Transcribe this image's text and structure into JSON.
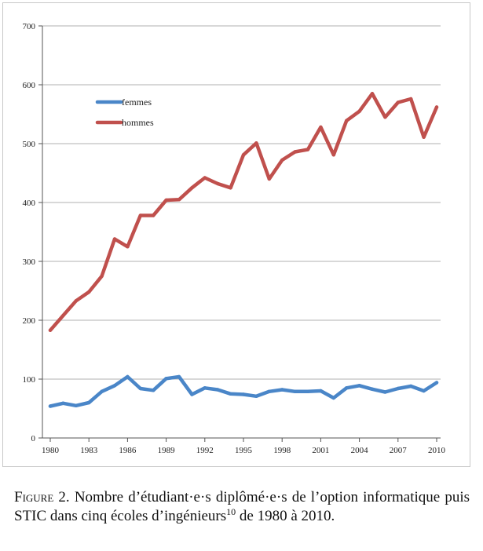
{
  "chart_data": {
    "type": "line",
    "title": "",
    "xlabel": "",
    "ylabel": "",
    "ylim": [
      0,
      700
    ],
    "yticks": [
      "0",
      "100",
      "200",
      "300",
      "400",
      "500",
      "600",
      "700"
    ],
    "xlim": [
      1980,
      2010
    ],
    "xticks": [
      "1980",
      "1983",
      "1986",
      "1989",
      "1992",
      "1995",
      "1998",
      "2001",
      "2004",
      "2007",
      "2010"
    ],
    "grid": true,
    "legend": "upper-left",
    "x": [
      1980,
      1981,
      1982,
      1983,
      1984,
      1985,
      1986,
      1987,
      1988,
      1989,
      1990,
      1991,
      1992,
      1993,
      1994,
      1995,
      1996,
      1997,
      1998,
      1999,
      2000,
      2001,
      2002,
      2003,
      2004,
      2005,
      2006,
      2007,
      2008,
      2009,
      2010
    ],
    "series": [
      {
        "name": "femmes",
        "color": "#4a86c8",
        "values": [
          54,
          59,
          55,
          60,
          79,
          89,
          104,
          84,
          81,
          101,
          104,
          74,
          85,
          82,
          75,
          74,
          71,
          79,
          82,
          79,
          79,
          80,
          68,
          85,
          89,
          83,
          78,
          84,
          88,
          80,
          94
        ]
      },
      {
        "name": "hommes",
        "color": "#c0504d",
        "values": [
          183,
          208,
          233,
          248,
          275,
          338,
          325,
          378,
          378,
          404,
          405,
          425,
          442,
          432,
          425,
          481,
          501,
          440,
          472,
          486,
          490,
          528,
          481,
          539,
          555,
          585,
          545,
          570,
          576,
          511,
          562
        ]
      }
    ]
  },
  "caption": {
    "label": "Figure 2.",
    "text": "Nombre d’étudiant·e·s diplômé·e·s de l’option informatique puis STIC dans cinq écoles d’ingénieurs",
    "footnote": "10",
    "tail": "de 1980 à 2010."
  }
}
